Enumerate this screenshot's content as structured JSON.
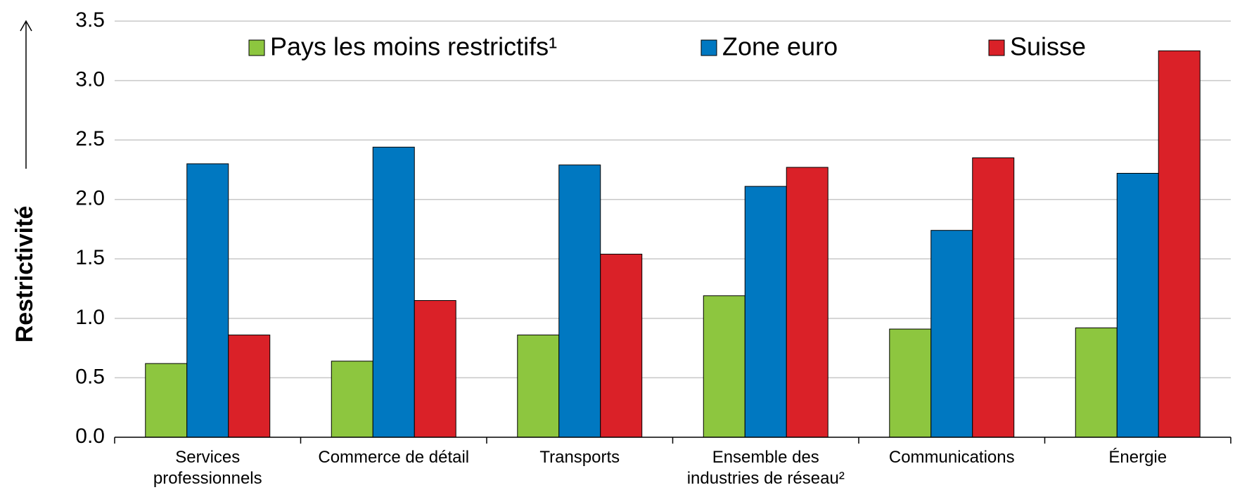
{
  "chart_data": {
    "type": "bar",
    "y_label": "Restrictivité",
    "categories": [
      "Services professionnels",
      "Commerce de détail",
      "Transports",
      "Ensemble des industries de réseau²",
      "Communications",
      "Énergie"
    ],
    "series": [
      {
        "name": "Pays les moins restrictifs¹",
        "color": "#8dc63f",
        "values": [
          0.62,
          0.64,
          0.86,
          1.19,
          0.91,
          0.92
        ]
      },
      {
        "name": "Zone euro",
        "color": "#0078c1",
        "values": [
          2.3,
          2.44,
          2.29,
          2.11,
          1.74,
          2.22
        ]
      },
      {
        "name": "Suisse",
        "color": "#da2128",
        "values": [
          0.86,
          1.15,
          1.54,
          2.27,
          2.35,
          3.25
        ]
      }
    ],
    "ylim": [
      0,
      3.5
    ],
    "yticks": [
      {
        "value": 0,
        "label": "0.0"
      },
      0.5,
      {
        "value": 1,
        "label": "1.0"
      },
      1.5,
      {
        "value": 2,
        "label": "2.0"
      },
      2.5,
      {
        "value": 3,
        "label": "3.0"
      },
      3.5
    ],
    "grid": true,
    "legend": "top"
  }
}
